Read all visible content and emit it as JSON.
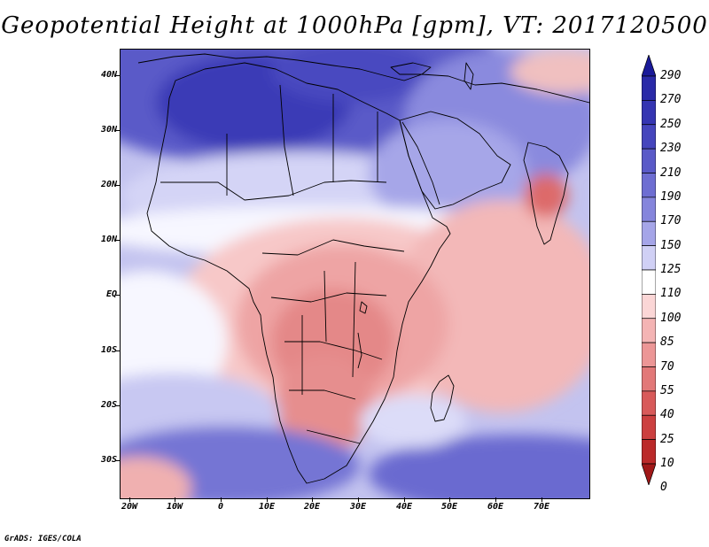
{
  "title": "Geopotential Height at 1000hPa [gpm], VT: 2017120500",
  "credit": "GrADS: IGES/COLA",
  "latitude_labels": [
    "40N",
    "30N",
    "20N",
    "10N",
    "EQ",
    "10S",
    "20S",
    "30S"
  ],
  "longitude_labels": [
    "20W",
    "10W",
    "0",
    "10E",
    "20E",
    "30E",
    "40E",
    "50E",
    "60E",
    "70E"
  ],
  "colorbar": {
    "levels": [
      "290",
      "270",
      "250",
      "230",
      "210",
      "190",
      "170",
      "150",
      "125",
      "110",
      "100",
      "85",
      "70",
      "55",
      "40",
      "25",
      "10",
      "0"
    ],
    "colors": [
      "#1a1a99",
      "#2a2aa8",
      "#3535b2",
      "#4545bd",
      "#5a5ac8",
      "#6e6ed2",
      "#8585dc",
      "#a5a5e8",
      "#d0d0f5",
      "#ffffff",
      "#fbd6d6",
      "#f4b4b4",
      "#ec9696",
      "#e27878",
      "#d85a5a",
      "#cc4040",
      "#bb2a2a",
      "#a01818"
    ]
  },
  "map": {
    "domain": {
      "lon": [
        -22,
        80
      ],
      "lat": [
        -37,
        45
      ]
    },
    "field": "Geopotential Height at 1000hPa",
    "units": "gpm",
    "valid_time": "2017120500"
  }
}
